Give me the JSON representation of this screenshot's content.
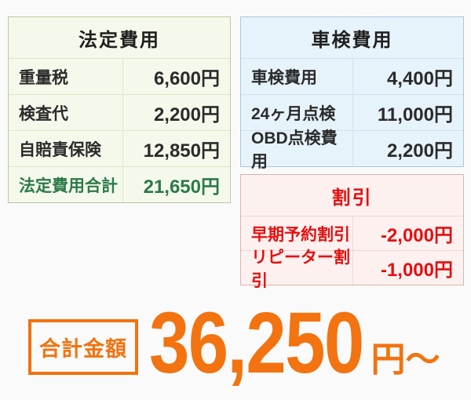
{
  "colors": {
    "accent_orange": "#f2730f",
    "green_total_text": "#2c7a4a",
    "discount_red": "#e60f0f",
    "body_text": "#2b2b2b",
    "page_bg": "#fbfafb",
    "legal_table_bg": "#f5f9eb",
    "legal_table_border": "#b6cb9e",
    "inspection_table_bg": "#e7f3fb",
    "inspection_table_border": "#a9c6de",
    "discount_table_bg": "#fdf1f0",
    "discount_table_border": "#dfb3aa"
  },
  "tables": {
    "legal": {
      "title": "法定費用",
      "rows": [
        {
          "label": "重量税",
          "value": "6,600円"
        },
        {
          "label": "検査代",
          "value": "2,200円"
        },
        {
          "label": "自賠責保険",
          "value": "12,850円"
        },
        {
          "label": "法定費用合計",
          "value": "21,650円"
        }
      ]
    },
    "inspection": {
      "title": "車検費用",
      "rows": [
        {
          "label": "車検費用",
          "value": "4,400円"
        },
        {
          "label": "24ヶ月点検",
          "value": "11,000円"
        },
        {
          "label": "OBD点検費用",
          "value": "2,200円"
        }
      ]
    },
    "discount": {
      "title": "割引",
      "rows": [
        {
          "label": "早期予約割引",
          "value": "-2,000円"
        },
        {
          "label": "リピーター割引",
          "value": "-1,000円"
        }
      ]
    }
  },
  "total": {
    "label": "合計金額",
    "amount": "36,250",
    "unit": "円〜"
  }
}
